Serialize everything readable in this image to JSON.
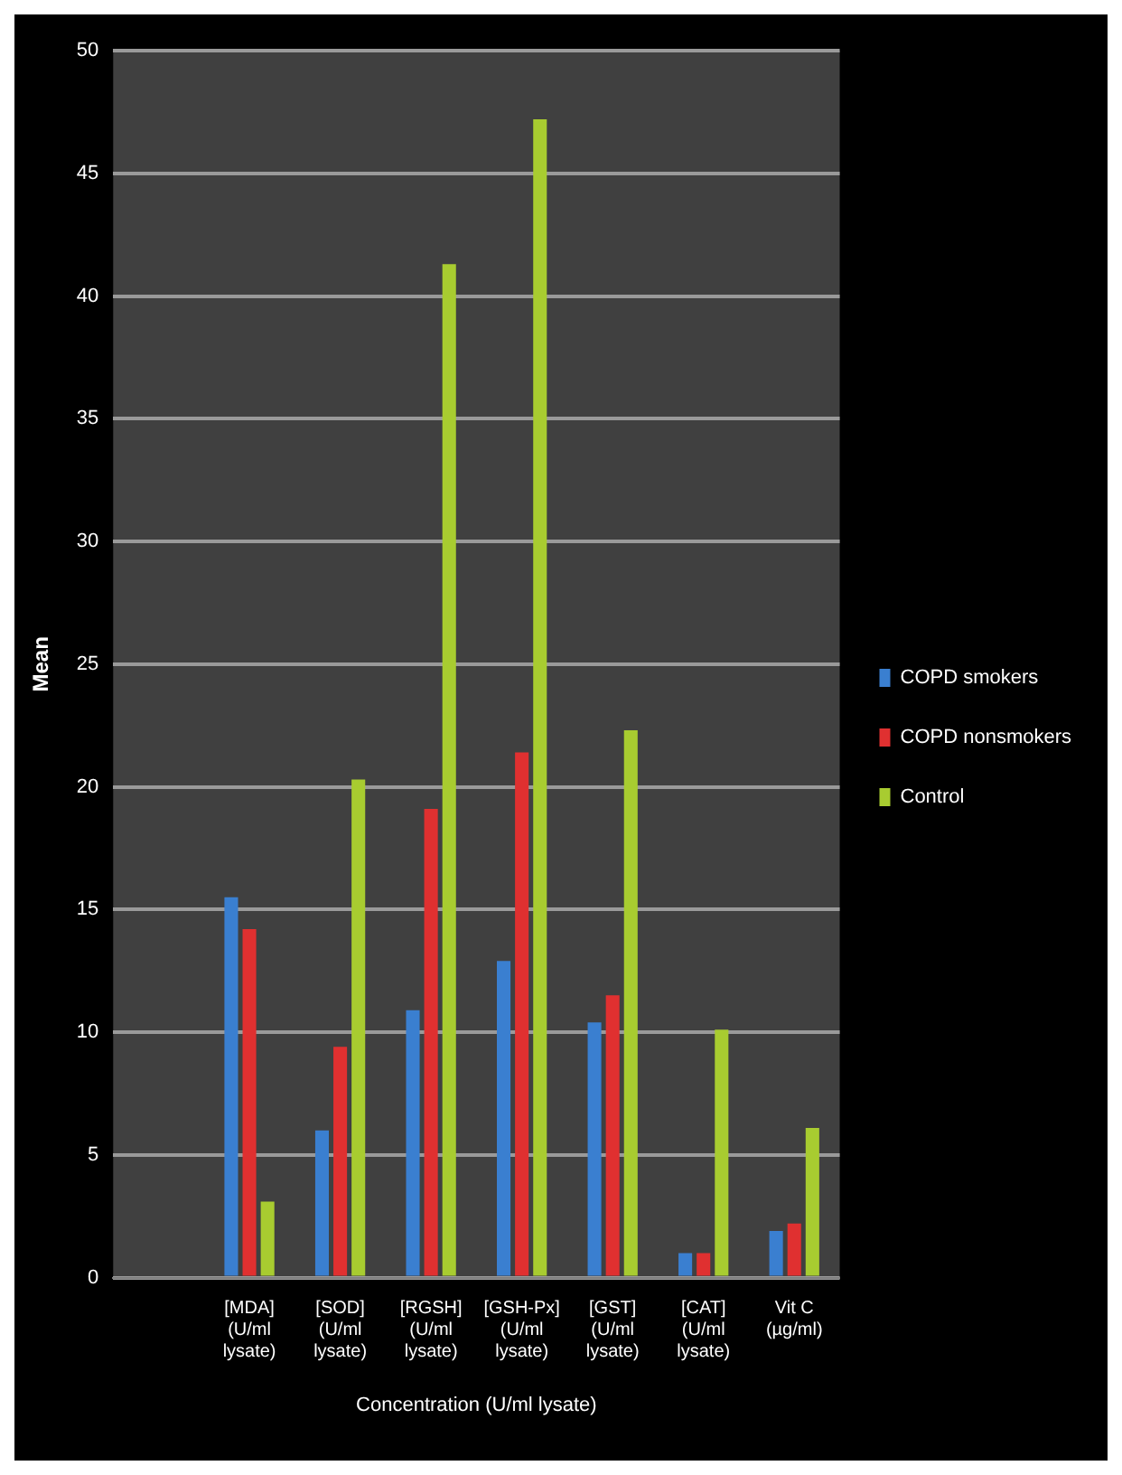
{
  "chart_data": {
    "type": "bar",
    "xlabel": "Concentration (U/ml lysate)",
    "ylabel": "Mean",
    "categories": [
      null,
      "[MDA] (U/ml lysate)",
      "[SOD] (U/ml lysate)",
      "[RGSH] (U/ml lysate)",
      "[GSH-Px] (U/ml lysate)",
      "[GST] (U/ml lysate)",
      "[CAT] (U/ml lysate)",
      "Vit C (µg/ml)"
    ],
    "series": [
      {
        "name": "COPD smokers",
        "color": "#3a7fd0",
        "values": [
          null,
          15.5,
          6,
          10.9,
          12.9,
          10.4,
          1,
          1.9
        ]
      },
      {
        "name": "COPD nonsmokers",
        "color": "#e03030",
        "values": [
          null,
          14.2,
          9.4,
          19.1,
          21.4,
          11.5,
          1,
          2.2
        ]
      },
      {
        "name": "Control",
        "color": "#a8cc30",
        "values": [
          null,
          3.1,
          20.3,
          41.3,
          47.2,
          22.3,
          10.1,
          6.1
        ]
      }
    ],
    "ylim": [
      0,
      50
    ],
    "yticks": [
      0,
      5,
      10,
      15,
      20,
      25,
      30,
      35,
      40,
      45,
      50
    ],
    "grid": "y",
    "legend": "right"
  }
}
